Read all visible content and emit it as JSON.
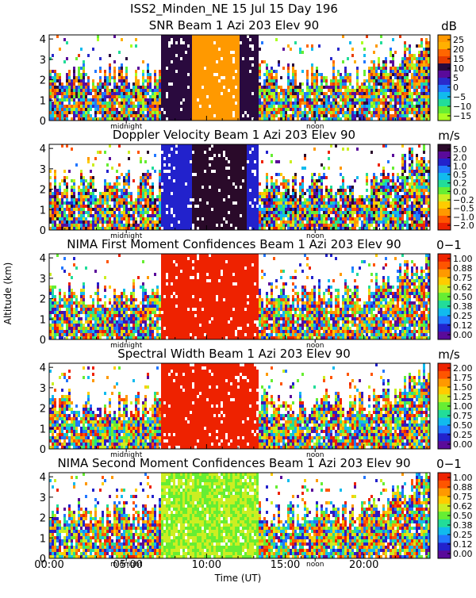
{
  "header": {
    "line1": "ISS2_Minden_NE  15 Jul 15 Day 196"
  },
  "axes": {
    "ylabel": "Altitude (km)",
    "xlabel": "Time (UT)",
    "xticks": [
      "00:00",
      "05:00",
      "10:00",
      "15:00",
      "20:00"
    ],
    "xtick_values": [
      0,
      5,
      10,
      15,
      20
    ],
    "yticks": [
      "0",
      "1",
      "2",
      "3",
      "4"
    ],
    "ytick_values": [
      0,
      1,
      2,
      3,
      4
    ],
    "xlim": [
      0,
      24.2
    ],
    "ylim": [
      0,
      4.2
    ],
    "markers": {
      "midnight": "midnight",
      "noon": "noon"
    },
    "marker_values": {
      "midnight": 4.9,
      "noon": 16.9
    }
  },
  "chart_data": [
    {
      "type": "heatmap",
      "title": "SNR Beam 1 Azi 203 Elev 90",
      "unit": "dB",
      "colorbar_ticks": [
        "25",
        "20",
        "15",
        "10",
        "5",
        "0",
        "−5",
        "−10",
        "−15"
      ],
      "colors": [
        "#ff9900",
        "#ffb000",
        "#ff6600",
        "#e83c00",
        "#2a0a3e",
        "#5a0a9a",
        "#2a2acc",
        "#2278ff",
        "#11bbee",
        "#22dd99",
        "#66ee33",
        "#aaff22"
      ]
    },
    {
      "type": "heatmap",
      "title": "Doppler Velocity Beam 1 Azi 203 Elev 90",
      "unit": "m/s",
      "colorbar_ticks": [
        "5.0",
        "2.0",
        "1.0",
        "0.5",
        "0.2",
        "0.0",
        "−0.2",
        "−0.5",
        "−1.0",
        "−2.0"
      ],
      "colors": [
        "#2a0a2a",
        "#5a0a9a",
        "#2222cc",
        "#2277ff",
        "#11bbee",
        "#22dd99",
        "#66ee33",
        "#ccee22",
        "#ffcc00",
        "#ff9900",
        "#ff5500",
        "#ee2200"
      ]
    },
    {
      "type": "heatmap",
      "title": "NIMA First Moment Confidences Beam 1 Azi 203 Elev 90",
      "unit": "0−1",
      "colorbar_ticks": [
        "1.00",
        "0.88",
        "0.75",
        "0.62",
        "0.50",
        "0.38",
        "0.25",
        "0.12",
        "0.00"
      ],
      "colors": [
        "#ee2200",
        "#ff5500",
        "#ff9900",
        "#ffcc00",
        "#ccee22",
        "#66ee33",
        "#22dd99",
        "#11bbee",
        "#2277ff",
        "#2222cc",
        "#5a0a9a"
      ]
    },
    {
      "type": "heatmap",
      "title": "Spectral Width Beam 1 Azi 203 Elev 90",
      "unit": "m/s",
      "colorbar_ticks": [
        "2.00",
        "1.75",
        "1.50",
        "1.25",
        "1.00",
        "0.75",
        "0.50",
        "0.25",
        "0.00"
      ],
      "colors": [
        "#ee2200",
        "#ff5500",
        "#ff9900",
        "#ffcc00",
        "#ccee22",
        "#66ee33",
        "#22dd99",
        "#11bbee",
        "#2277ff",
        "#2222cc",
        "#5a0a9a"
      ]
    },
    {
      "type": "heatmap",
      "title": "NIMA Second Moment Confidences Beam 1 Azi 203 Elev 90",
      "unit": "0−1",
      "colorbar_ticks": [
        "1.00",
        "0.88",
        "0.75",
        "0.62",
        "0.50",
        "0.38",
        "0.25",
        "0.12",
        "0.00"
      ],
      "colors": [
        "#ee2200",
        "#ff5500",
        "#ff9900",
        "#ffcc00",
        "#ccee22",
        "#66ee33",
        "#22dd99",
        "#11bbee",
        "#2277ff",
        "#2222cc",
        "#5a0a9a"
      ]
    }
  ]
}
